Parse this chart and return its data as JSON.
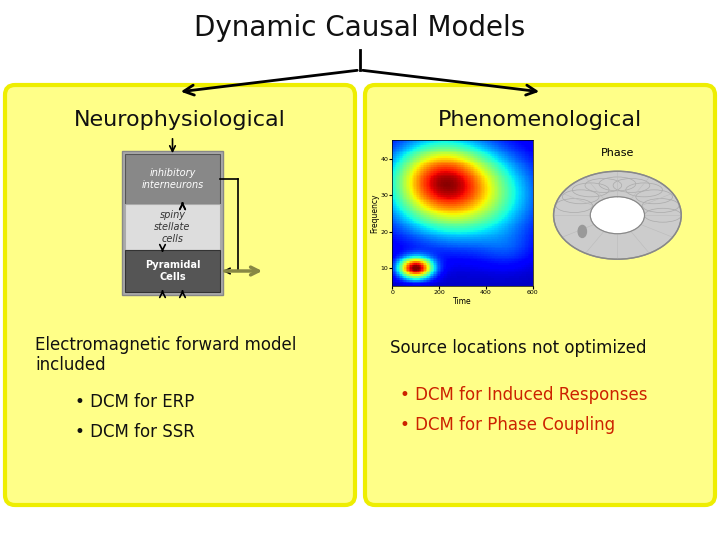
{
  "title": "Dynamic Causal Models",
  "title_fontsize": 20,
  "title_fontweight": "normal",
  "bg_color": "#ffffff",
  "box_fill_color": "#ffff88",
  "box_edge_color": "#eeee00",
  "box_edge_width": 3,
  "left_header": "Neurophysiological",
  "right_header": "Phenomenological",
  "header_fontsize": 16,
  "left_desc1": "Electromagnetic forward model",
  "left_desc2": "included",
  "right_desc": "Source locations not optimized",
  "desc_fontsize": 12,
  "left_bullets": [
    "• DCM for ERP",
    "• DCM for SSR"
  ],
  "right_bullets": [
    "• DCM for Induced Responses",
    "• DCM for Phase Coupling"
  ],
  "bullet_fontsize": 12,
  "bullet_color_left": "#111111",
  "bullet_color_right": "#cc2200",
  "neuro_labels": [
    "inhibitory\ninterneurons",
    "spiny\nstellate\ncells",
    "Pyramidal\nCells"
  ],
  "neuro_fontsize": 7,
  "phase_label": "Phase",
  "freq_label": "Frequency",
  "time_label": "Time"
}
